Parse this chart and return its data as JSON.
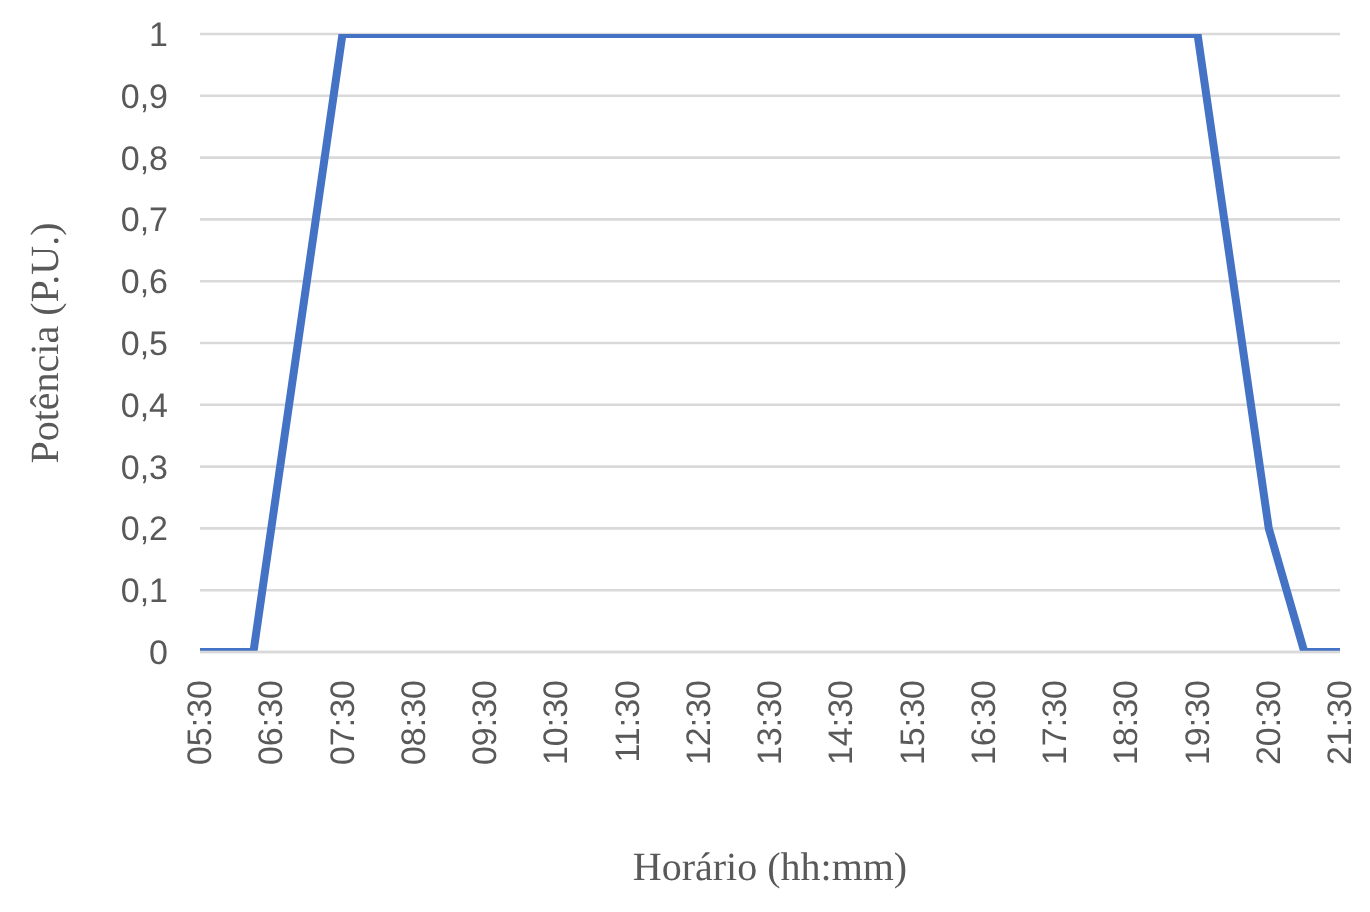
{
  "chart_data": {
    "type": "line",
    "xlabel": "Horário (hh:mm)",
    "ylabel": "Potência (P.U.)",
    "x": [
      5.5,
      6.25,
      7.5,
      19.5,
      20.5,
      21,
      21.5
    ],
    "series": [
      {
        "color": "#4472c4",
        "values": [
          0,
          0,
          1,
          1,
          0.2,
          0,
          0
        ]
      }
    ],
    "xlim": [
      5.5,
      21.5
    ],
    "xticks": [
      {
        "value": 5.5,
        "label": "05:30"
      },
      {
        "value": 6.5,
        "label": "06:30"
      },
      {
        "value": 7.5,
        "label": "07:30"
      },
      {
        "value": 8.5,
        "label": "08:30"
      },
      {
        "value": 9.5,
        "label": "09:30"
      },
      {
        "value": 10.5,
        "label": "10:30"
      },
      {
        "value": 11.5,
        "label": "11:30"
      },
      {
        "value": 12.5,
        "label": "12:30"
      },
      {
        "value": 13.5,
        "label": "13:30"
      },
      {
        "value": 14.5,
        "label": "14:30"
      },
      {
        "value": 15.5,
        "label": "15:30"
      },
      {
        "value": 16.5,
        "label": "16:30"
      },
      {
        "value": 17.5,
        "label": "17:30"
      },
      {
        "value": 18.5,
        "label": "18:30"
      },
      {
        "value": 19.5,
        "label": "19:30"
      },
      {
        "value": 20.5,
        "label": "20:30"
      },
      {
        "value": 21.5,
        "label": "21:30"
      }
    ],
    "ylim": [
      0,
      1
    ],
    "yticks": [
      0,
      {
        "value": 0.1,
        "label": "0,1"
      },
      {
        "value": 0.2,
        "label": "0,2"
      },
      {
        "value": 0.3,
        "label": "0,3"
      },
      {
        "value": 0.4,
        "label": "0,4"
      },
      {
        "value": 0.5,
        "label": "0,5"
      },
      {
        "value": 0.6,
        "label": "0,6"
      },
      {
        "value": 0.7,
        "label": "0,7"
      },
      {
        "value": 0.8,
        "label": "0,8"
      },
      {
        "value": 0.9,
        "label": "0,9"
      },
      1
    ],
    "grid": "y",
    "marker": "none",
    "line_style": "solid",
    "legend": false
  }
}
